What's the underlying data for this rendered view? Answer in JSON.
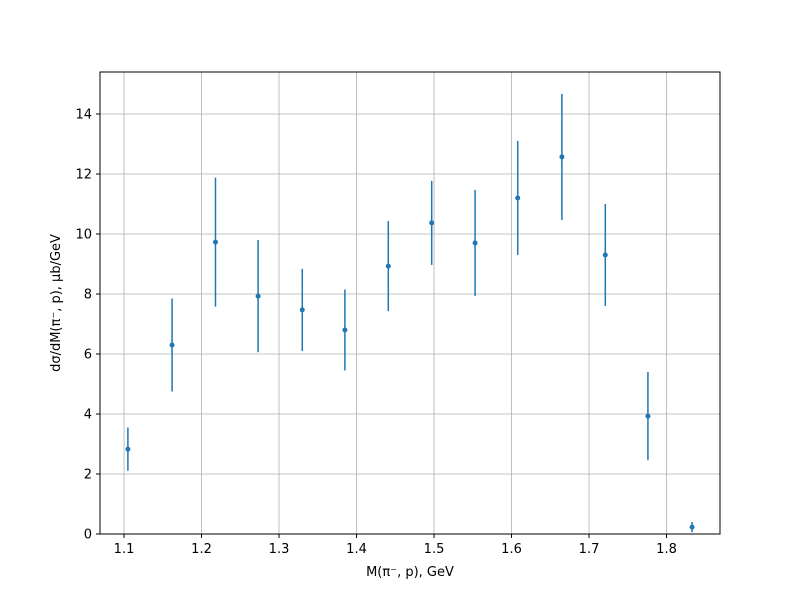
{
  "chart_data": {
    "type": "errorbar",
    "xlabel": "M(π⁻, p), GeV",
    "ylabel": "dσ/dM(π⁻, p), μb/GeV",
    "x": [
      1.105,
      1.162,
      1.218,
      1.273,
      1.33,
      1.385,
      1.441,
      1.497,
      1.553,
      1.608,
      1.665,
      1.721,
      1.776,
      1.833
    ],
    "values": [
      2.83,
      6.3,
      9.73,
      7.93,
      7.47,
      6.8,
      8.93,
      10.37,
      9.7,
      11.2,
      12.57,
      9.3,
      3.93,
      0.23
    ],
    "errors": [
      0.72,
      1.55,
      2.15,
      1.87,
      1.37,
      1.35,
      1.5,
      1.4,
      1.77,
      1.9,
      2.1,
      1.7,
      1.47,
      0.17
    ],
    "color": "#1f77b4",
    "xlim": [
      1.069,
      1.869
    ],
    "ylim": [
      0,
      15.4
    ],
    "xticks": [
      1.1,
      1.2,
      1.3,
      1.4,
      1.5,
      1.6,
      1.7,
      1.8
    ],
    "yticks": [
      0,
      2,
      4,
      6,
      8,
      10,
      12,
      14
    ],
    "grid": true
  }
}
